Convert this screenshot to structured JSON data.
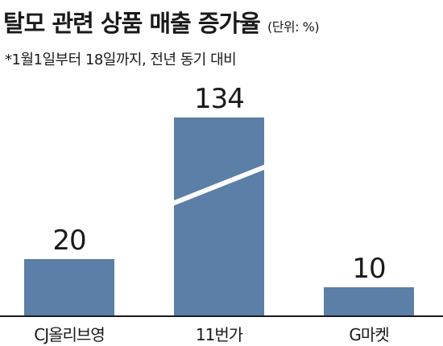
{
  "chart_data": {
    "type": "bar",
    "title": "탈모 관련 상품 매출 증가율",
    "unit_label": "(단위: %)",
    "subtitle": "*1월1일부터 18일까지, 전년 동기 대비",
    "categories": [
      "CJ올리브영",
      "11번가",
      "G마켓"
    ],
    "values": [
      20,
      134,
      10
    ],
    "data_labels": [
      "20",
      "134",
      "10"
    ],
    "axis_break": true,
    "colors": {
      "bar": "#5b7fa6",
      "baseline": "#1a1a1a",
      "text": "#1a1a1a"
    }
  }
}
